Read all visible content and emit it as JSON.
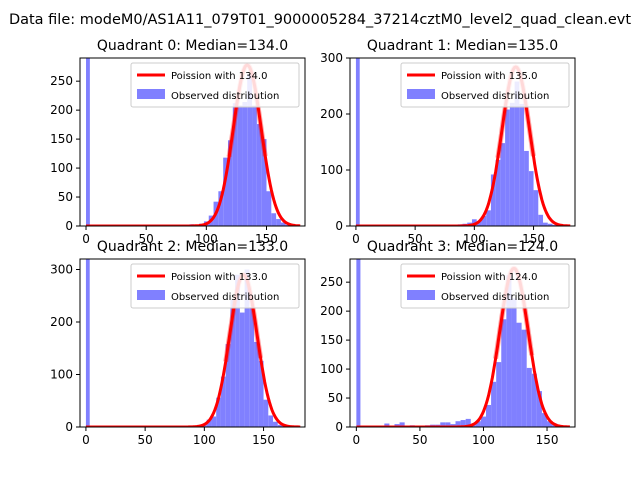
{
  "suptitle": "Data file: modeM0/AS1A11_079T01_9000005284_37214cztM0_level2_quad_clean.evt",
  "colors": {
    "poisson": "#ff0000",
    "observed": "#8080ff",
    "axis": "#000000"
  },
  "chart_data": [
    {
      "type": "bar",
      "title": "Quadrant 0: Median=134.0",
      "xlim": [
        -5,
        182
      ],
      "ylim": [
        0,
        290
      ],
      "xticks": [
        0,
        50,
        100,
        150
      ],
      "yticks": [
        0,
        50,
        100,
        150,
        200,
        250
      ],
      "legend": {
        "position": "top-right",
        "entries": [
          "Poission with 134.0",
          "Observed distribution"
        ]
      },
      "median": 134,
      "poisson_peak": 278,
      "zero_bin": 290,
      "bins": [
        [
          72,
          2
        ],
        [
          80,
          2
        ],
        [
          88,
          3
        ],
        [
          92,
          2
        ],
        [
          96,
          4
        ],
        [
          100,
          8
        ],
        [
          104,
          18
        ],
        [
          108,
          42
        ],
        [
          112,
          60
        ],
        [
          116,
          118
        ],
        [
          120,
          148
        ],
        [
          124,
          212
        ],
        [
          128,
          208
        ],
        [
          132,
          214
        ],
        [
          136,
          262
        ],
        [
          140,
          208
        ],
        [
          144,
          176
        ],
        [
          148,
          150
        ],
        [
          152,
          60
        ],
        [
          156,
          22
        ],
        [
          160,
          12
        ],
        [
          164,
          6
        ],
        [
          168,
          2
        ],
        [
          172,
          2
        ]
      ],
      "bin_width": 4
    },
    {
      "type": "bar",
      "title": "Quadrant 1: Median=135.0",
      "xlim": [
        -5,
        185
      ],
      "ylim": [
        0,
        300
      ],
      "xticks": [
        0,
        50,
        100,
        150
      ],
      "yticks": [
        0,
        100,
        200,
        300
      ],
      "legend": {
        "position": "top-right",
        "entries": [
          "Poission with 135.0",
          "Observed distribution"
        ]
      },
      "median": 135,
      "poisson_peak": 284,
      "zero_bin": 300,
      "bins": [
        [
          80,
          2
        ],
        [
          88,
          3
        ],
        [
          92,
          4
        ],
        [
          96,
          6
        ],
        [
          100,
          12
        ],
        [
          104,
          8
        ],
        [
          108,
          18
        ],
        [
          112,
          28
        ],
        [
          116,
          92
        ],
        [
          120,
          118
        ],
        [
          124,
          148
        ],
        [
          128,
          208
        ],
        [
          132,
          220
        ],
        [
          136,
          258
        ],
        [
          140,
          218
        ],
        [
          144,
          134
        ],
        [
          148,
          98
        ],
        [
          152,
          64
        ],
        [
          156,
          20
        ],
        [
          160,
          6
        ],
        [
          164,
          4
        ],
        [
          168,
          2
        ]
      ],
      "bin_width": 4
    },
    {
      "type": "bar",
      "title": "Quadrant 2: Median=133.0",
      "xlim": [
        -5,
        185
      ],
      "ylim": [
        0,
        320
      ],
      "xticks": [
        0,
        50,
        100,
        150
      ],
      "yticks": [
        0,
        100,
        200,
        300
      ],
      "legend": {
        "position": "top-right",
        "entries": [
          "Poission with 133.0",
          "Observed distribution"
        ]
      },
      "median": 133,
      "poisson_peak": 290,
      "zero_bin": 320,
      "bins": [
        [
          90,
          2
        ],
        [
          96,
          4
        ],
        [
          100,
          6
        ],
        [
          104,
          14
        ],
        [
          108,
          20
        ],
        [
          112,
          56
        ],
        [
          116,
          96
        ],
        [
          120,
          158
        ],
        [
          124,
          242
        ],
        [
          128,
          290
        ],
        [
          132,
          218
        ],
        [
          136,
          300
        ],
        [
          140,
          228
        ],
        [
          144,
          162
        ],
        [
          148,
          126
        ],
        [
          152,
          52
        ],
        [
          156,
          22
        ],
        [
          160,
          10
        ],
        [
          164,
          4
        ],
        [
          168,
          2
        ]
      ],
      "bin_width": 4
    },
    {
      "type": "bar",
      "title": "Quadrant 3: Median=124.0",
      "xlim": [
        -5,
        172
      ],
      "ylim": [
        0,
        290
      ],
      "xticks": [
        0,
        50,
        100,
        150
      ],
      "yticks": [
        0,
        50,
        100,
        150,
        200,
        250
      ],
      "legend": {
        "position": "top-right",
        "entries": [
          "Poission with 124.0",
          "Observed distribution"
        ]
      },
      "median": 124,
      "poisson_peak": 274,
      "zero_bin": 290,
      "bins": [
        [
          24,
          6
        ],
        [
          28,
          2
        ],
        [
          32,
          5
        ],
        [
          36,
          8
        ],
        [
          40,
          2
        ],
        [
          44,
          3
        ],
        [
          48,
          2
        ],
        [
          52,
          2
        ],
        [
          56,
          3
        ],
        [
          60,
          4
        ],
        [
          64,
          4
        ],
        [
          68,
          8
        ],
        [
          72,
          8
        ],
        [
          76,
          5
        ],
        [
          80,
          10
        ],
        [
          84,
          12
        ],
        [
          88,
          14
        ],
        [
          92,
          6
        ],
        [
          96,
          10
        ],
        [
          100,
          18
        ],
        [
          104,
          38
        ],
        [
          108,
          78
        ],
        [
          112,
          112
        ],
        [
          116,
          186
        ],
        [
          120,
          262
        ],
        [
          124,
          222
        ],
        [
          128,
          180
        ],
        [
          132,
          168
        ],
        [
          136,
          102
        ],
        [
          140,
          92
        ],
        [
          144,
          62
        ],
        [
          148,
          24
        ],
        [
          152,
          10
        ],
        [
          156,
          6
        ],
        [
          160,
          2
        ]
      ],
      "bin_width": 4
    }
  ]
}
